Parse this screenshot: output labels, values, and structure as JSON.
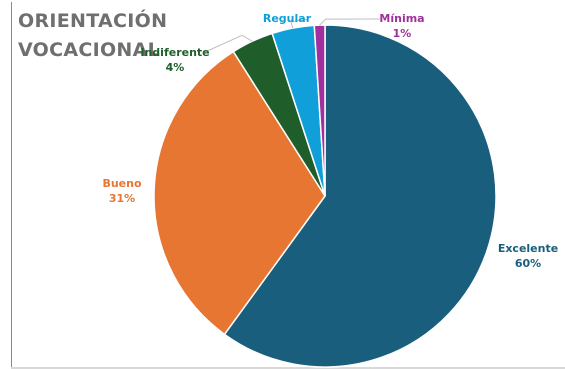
{
  "title_lines": [
    "ORIENTACIÓN",
    "VOCACIONAL"
  ],
  "chart_data": {
    "type": "pie",
    "title": "ORIENTACIÓN VOCACIONAL",
    "slices": [
      {
        "label": "Excelente",
        "value": 60,
        "value_label": "60%",
        "color": "#1a5e7e",
        "label_color": "#1a5e7e"
      },
      {
        "label": "Bueno",
        "value": 31,
        "value_label": "31%",
        "color": "#e67632",
        "label_color": "#e67632"
      },
      {
        "label": "Indiferente",
        "value": 4,
        "value_label": "4%",
        "color": "#1f5e2b",
        "label_color": "#1f5e2b"
      },
      {
        "label": "Regular",
        "value": 4,
        "value_label": "",
        "color": "#109fd9",
        "label_color": "#109fd9"
      },
      {
        "label": "Mínima",
        "value": 1,
        "value_label": "1%",
        "color": "#a0309d",
        "label_color": "#a0309d"
      }
    ],
    "legend": "none",
    "data_labels": true
  }
}
